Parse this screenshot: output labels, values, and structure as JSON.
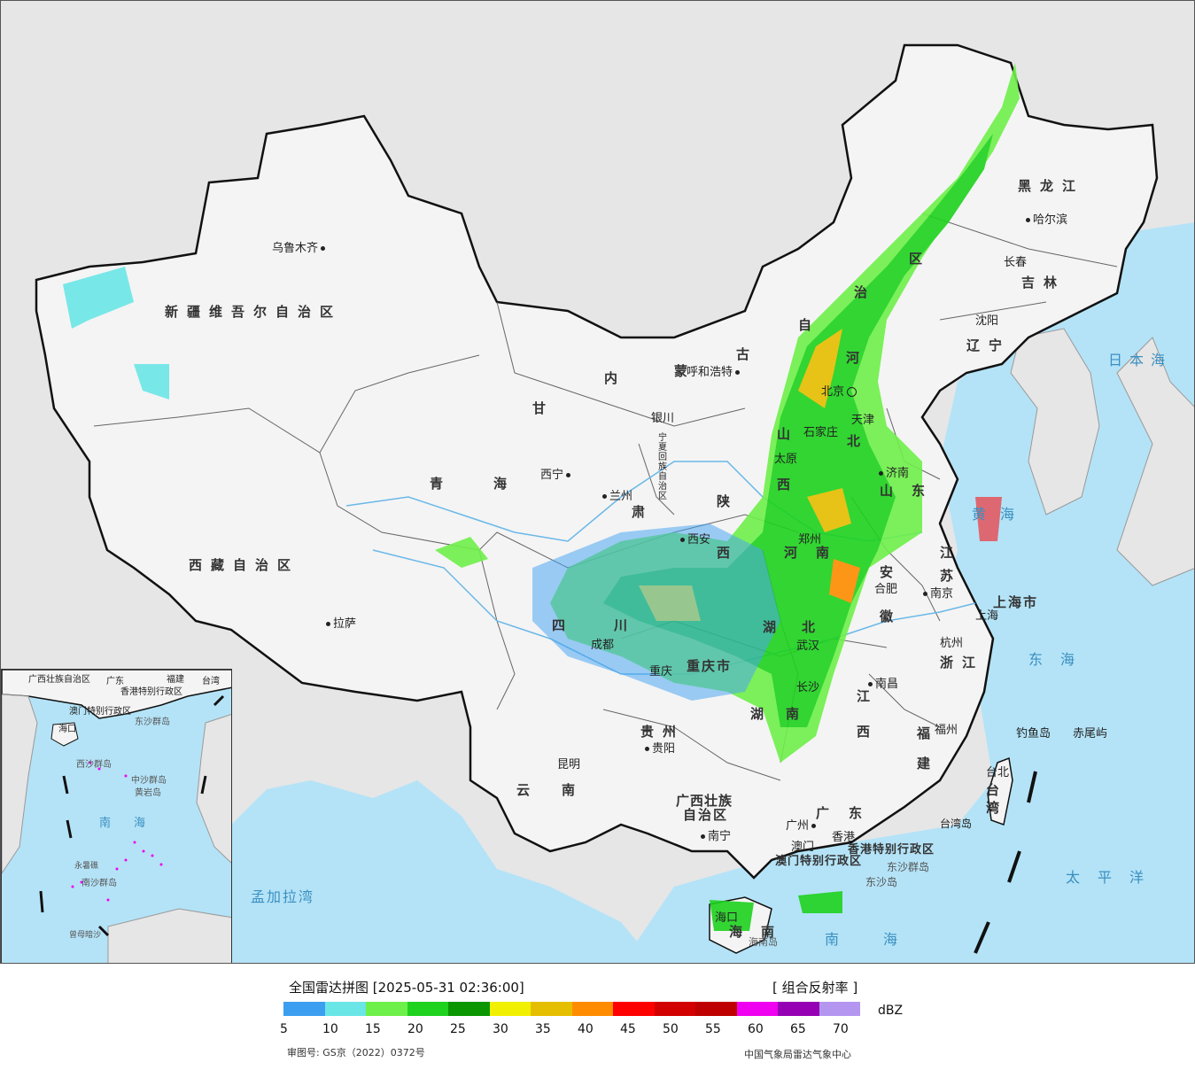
{
  "map": {
    "provinces": [
      {
        "id": "xinjiang",
        "text": "新疆维吾尔自治区"
      },
      {
        "id": "xizang",
        "text": "西藏自治区"
      },
      {
        "id": "qinghai-1",
        "text": "青"
      },
      {
        "id": "qinghai-2",
        "text": "海"
      },
      {
        "id": "gansu-1",
        "text": "甘"
      },
      {
        "id": "gansu-2",
        "text": "肃"
      },
      {
        "id": "neimenggu-1",
        "text": "内"
      },
      {
        "id": "neimenggu-2",
        "text": "蒙"
      },
      {
        "id": "neimenggu-3",
        "text": "古"
      },
      {
        "id": "neimenggu-4",
        "text": "自"
      },
      {
        "id": "neimenggu-5",
        "text": "治"
      },
      {
        "id": "neimenggu-6",
        "text": "区"
      },
      {
        "id": "heilongjiang",
        "text": "黑龙江"
      },
      {
        "id": "jilin",
        "text": "吉林"
      },
      {
        "id": "liaoning",
        "text": "辽宁"
      },
      {
        "id": "hebei-1",
        "text": "河"
      },
      {
        "id": "hebei-2",
        "text": "北"
      },
      {
        "id": "shanxi-1",
        "text": "山"
      },
      {
        "id": "shanxi-2",
        "text": "西"
      },
      {
        "id": "shandong-1",
        "text": "山"
      },
      {
        "id": "shandong-2",
        "text": "东"
      },
      {
        "id": "shaanxi-1",
        "text": "陕"
      },
      {
        "id": "shaanxi-2",
        "text": "西"
      },
      {
        "id": "henan-1",
        "text": "河"
      },
      {
        "id": "henan-2",
        "text": "南"
      },
      {
        "id": "jiangsu-1",
        "text": "江"
      },
      {
        "id": "jiangsu-2",
        "text": "苏"
      },
      {
        "id": "anhui-1",
        "text": "安"
      },
      {
        "id": "anhui-2",
        "text": "徽"
      },
      {
        "id": "sichuan-1",
        "text": "四"
      },
      {
        "id": "sichuan-2",
        "text": "川"
      },
      {
        "id": "chongqing",
        "text": "重庆市"
      },
      {
        "id": "hubei-1",
        "text": "湖"
      },
      {
        "id": "hubei-2",
        "text": "北"
      },
      {
        "id": "hunan-1",
        "text": "湖"
      },
      {
        "id": "hunan-2",
        "text": "南"
      },
      {
        "id": "jiangxi-1",
        "text": "江"
      },
      {
        "id": "jiangxi-2",
        "text": "西"
      },
      {
        "id": "zhejiang",
        "text": "浙江"
      },
      {
        "id": "fujian-1",
        "text": "福"
      },
      {
        "id": "fujian-2",
        "text": "建"
      },
      {
        "id": "guizhou",
        "text": "贵州"
      },
      {
        "id": "yunnan",
        "text": "云南"
      },
      {
        "id": "guangxi-1",
        "text": "广西壮族"
      },
      {
        "id": "guangxi-2",
        "text": "自治区"
      },
      {
        "id": "guangdong",
        "text": "广东"
      },
      {
        "id": "hainan-1",
        "text": "海"
      },
      {
        "id": "hainan-2",
        "text": "南"
      },
      {
        "id": "taiwan-1",
        "text": "台"
      },
      {
        "id": "taiwan-2",
        "text": "湾"
      },
      {
        "id": "shanghai",
        "text": "上海市"
      },
      {
        "id": "ningxia",
        "text": "宁夏回族自治区"
      },
      {
        "id": "hongkong",
        "text": "香港特别行政区"
      },
      {
        "id": "macao",
        "text": "澳门特别行政区"
      }
    ],
    "cities": [
      {
        "id": "urumqi",
        "text": "乌鲁木齐"
      },
      {
        "id": "lhasa",
        "text": "拉萨"
      },
      {
        "id": "xining",
        "text": "西宁"
      },
      {
        "id": "lanzhou",
        "text": "兰州"
      },
      {
        "id": "yinchuan",
        "text": "银川"
      },
      {
        "id": "hohhot",
        "text": "呼和浩特"
      },
      {
        "id": "harbin",
        "text": "哈尔滨"
      },
      {
        "id": "changchun",
        "text": "长春"
      },
      {
        "id": "shenyang",
        "text": "沈阳"
      },
      {
        "id": "beijing",
        "text": "北京"
      },
      {
        "id": "tianjin",
        "text": "天津"
      },
      {
        "id": "shijiazhuang",
        "text": "石家庄"
      },
      {
        "id": "taiyuan",
        "text": "太原"
      },
      {
        "id": "jinan",
        "text": "济南"
      },
      {
        "id": "xian",
        "text": "西安"
      },
      {
        "id": "zhengzhou",
        "text": "郑州"
      },
      {
        "id": "hefei",
        "text": "合肥"
      },
      {
        "id": "nanjing",
        "text": "南京"
      },
      {
        "id": "shanghai-city",
        "text": "上海"
      },
      {
        "id": "hangzhou",
        "text": "杭州"
      },
      {
        "id": "chengdu",
        "text": "成都"
      },
      {
        "id": "chongqing-city",
        "text": "重庆"
      },
      {
        "id": "wuhan",
        "text": "武汉"
      },
      {
        "id": "changsha",
        "text": "长沙"
      },
      {
        "id": "nanchang",
        "text": "南昌"
      },
      {
        "id": "fuzhou",
        "text": "福州"
      },
      {
        "id": "guiyang",
        "text": "贵阳"
      },
      {
        "id": "kunming",
        "text": "昆明"
      },
      {
        "id": "nanning",
        "text": "南宁"
      },
      {
        "id": "guangzhou",
        "text": "广州"
      },
      {
        "id": "macao-city",
        "text": "澳门"
      },
      {
        "id": "hongkong-city",
        "text": "香港"
      },
      {
        "id": "haikou",
        "text": "海口"
      },
      {
        "id": "taibei",
        "text": "台北"
      }
    ],
    "places": [
      {
        "id": "diaoyu",
        "text": "钓鱼岛"
      },
      {
        "id": "chiwei",
        "text": "赤尾屿"
      },
      {
        "id": "taiwan-island",
        "text": "台湾岛"
      },
      {
        "id": "dongsha-islands",
        "text": "东沙群岛"
      },
      {
        "id": "dongsha",
        "text": "东沙岛"
      },
      {
        "id": "hainan-island",
        "text": "海南岛"
      }
    ],
    "seas": [
      {
        "id": "sea-japan",
        "text": "日本海"
      },
      {
        "id": "sea-yellow",
        "text": "黄海"
      },
      {
        "id": "sea-east",
        "text": "东海"
      },
      {
        "id": "sea-pacific",
        "text": "太平洋"
      },
      {
        "id": "sea-south",
        "text": "南海"
      },
      {
        "id": "sea-bengal",
        "text": "孟加拉湾"
      }
    ],
    "inset": {
      "labels": [
        {
          "id": "inset-guangxi",
          "text": "广西壮族自治区"
        },
        {
          "id": "inset-guangdong",
          "text": "广东"
        },
        {
          "id": "inset-fujian",
          "text": "福建"
        },
        {
          "id": "inset-taiwan",
          "text": "台湾"
        },
        {
          "id": "inset-hk",
          "text": "香港特别行政区"
        },
        {
          "id": "inset-macao",
          "text": "澳门特别行政区"
        },
        {
          "id": "inset-dongsha",
          "text": "东沙群岛"
        },
        {
          "id": "inset-hainan",
          "text": "海口"
        },
        {
          "id": "inset-xisha",
          "text": "西沙群岛"
        },
        {
          "id": "inset-zhongsha",
          "text": "中沙群岛"
        },
        {
          "id": "inset-huangyan",
          "text": "黄岩岛"
        },
        {
          "id": "inset-south-sea",
          "text": "南海"
        },
        {
          "id": "inset-nansha",
          "text": "南沙群岛"
        },
        {
          "id": "inset-yongshu",
          "text": "永暑礁"
        },
        {
          "id": "inset-zengmu",
          "text": "曾母暗沙"
        }
      ]
    },
    "colors": {
      "sea": "#b4e3f7",
      "land": "#f4f4f4",
      "foreign": "#e6e6e6",
      "border": "#111111",
      "river": "#6ab8e8"
    }
  },
  "legend": {
    "title": "全国雷达拼图 [2025-05-31 02:36:00]",
    "product": "[ 组合反射率 ]",
    "unit": "dBZ",
    "colors": [
      "#3c9ef0",
      "#6ae6e6",
      "#6ef04a",
      "#1ed21e",
      "#0a9600",
      "#f0f000",
      "#e6be00",
      "#ff8c00",
      "#ff0000",
      "#d20000",
      "#be0000",
      "#f000f0",
      "#9600b4",
      "#b496f0"
    ],
    "ticks": [
      "5",
      "10",
      "15",
      "20",
      "25",
      "30",
      "35",
      "40",
      "45",
      "50",
      "55",
      "60",
      "65",
      "70"
    ],
    "approval": "审图号: GS京（2022）0372号",
    "agency": "中国气象局雷达气象中心"
  }
}
